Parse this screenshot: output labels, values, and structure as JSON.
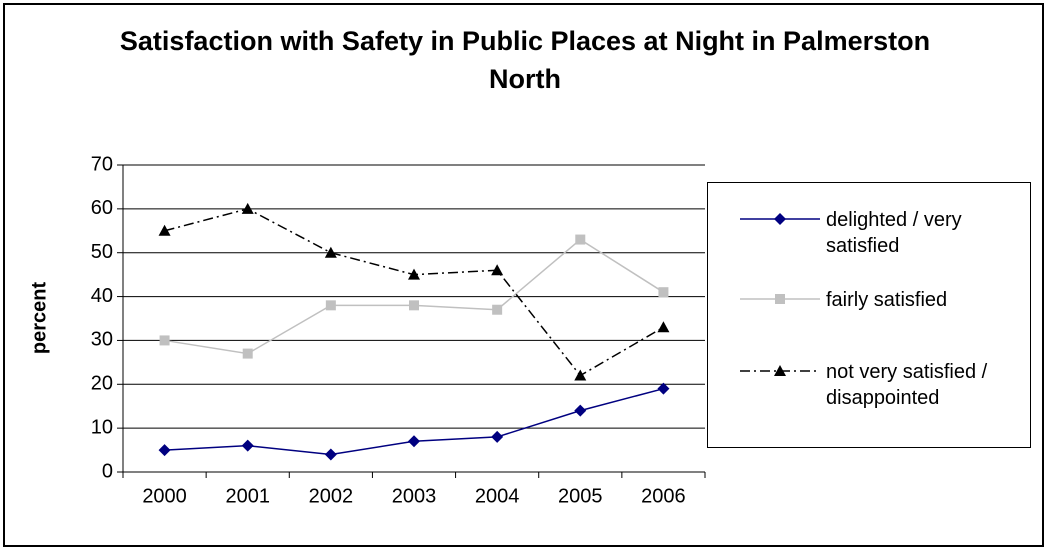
{
  "chart_data": {
    "type": "line",
    "title": "Satisfaction with Safety in Public Places at Night in Palmerston North",
    "y_label": "percent",
    "categories": [
      "2000",
      "2001",
      "2002",
      "2003",
      "2004",
      "2005",
      "2006"
    ],
    "series": [
      {
        "name": "delighted / very satisfied",
        "color": "#000080",
        "marker": "diamond",
        "dash": "solid",
        "values": [
          5,
          6,
          4,
          7,
          8,
          14,
          19
        ]
      },
      {
        "name": "fairly satisfied",
        "color": "#c0c0c0",
        "marker": "square",
        "dash": "solid",
        "values": [
          30,
          27,
          38,
          38,
          37,
          53,
          41
        ]
      },
      {
        "name": "not very satisfied / disappointed",
        "color": "#000000",
        "marker": "triangle",
        "dash": "dashdot",
        "values": [
          55,
          60,
          50,
          45,
          46,
          22,
          33
        ]
      }
    ],
    "ylim": [
      0,
      70
    ],
    "yticks": [
      0,
      10,
      20,
      30,
      40,
      50,
      60,
      70
    ],
    "grid": true,
    "legend": "right"
  }
}
